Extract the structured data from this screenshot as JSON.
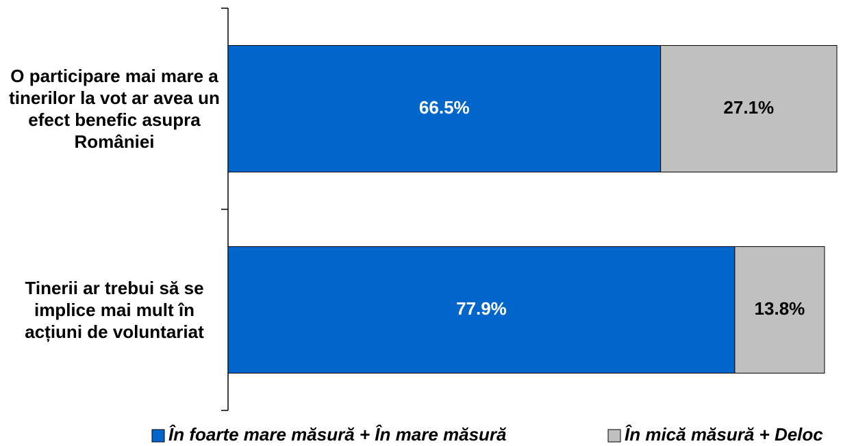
{
  "chart_data": {
    "type": "stacked_bar_horizontal",
    "categories": [
      "O participare mai mare a tinerilor la vot ar avea un efect benefic asupra României",
      "Tinerii ar trebui să se implice mai mult în acțiuni de voluntariat"
    ],
    "series": [
      {
        "name": "În foarte mare măsură + În mare măsură",
        "color": "#0066cc",
        "label_color": "#ffffff",
        "values": [
          66.5,
          77.9
        ],
        "value_labels": [
          "66.5%",
          "77.9%"
        ]
      },
      {
        "name": "În mică măsură + Deloc",
        "color": "#c0c0c0",
        "label_color": "#000000",
        "values": [
          27.1,
          13.8
        ],
        "value_labels": [
          "27.1%",
          "13.8%"
        ]
      }
    ],
    "legend": "bottom"
  }
}
